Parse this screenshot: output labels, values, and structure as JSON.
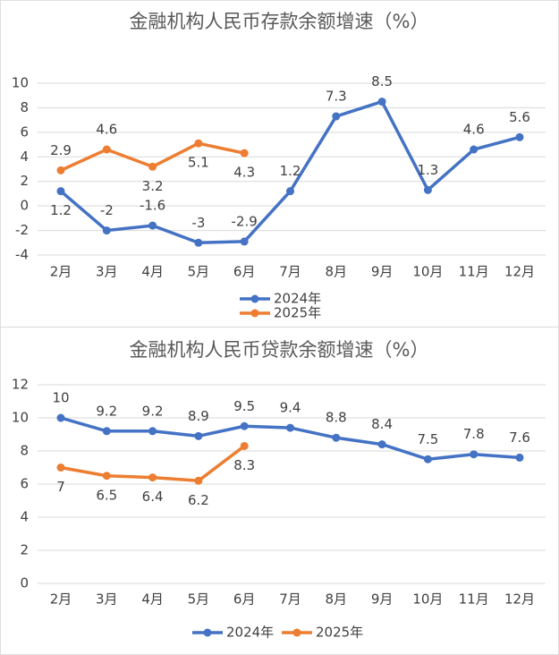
{
  "chart_data": [
    {
      "type": "line",
      "title": "金融机构人民币存款余额增速（%）",
      "categories": [
        "2月",
        "3月",
        "4月",
        "5月",
        "6月",
        "7月",
        "8月",
        "9月",
        "10月",
        "11月",
        "12月"
      ],
      "series": [
        {
          "name": "2024年",
          "color": "#4472c4",
          "values": [
            1.2,
            -2,
            -1.6,
            -3,
            -2.9,
            1.2,
            7.3,
            8.5,
            1.3,
            4.6,
            5.6
          ]
        },
        {
          "name": "2025年",
          "color": "#ed7d31",
          "values": [
            2.9,
            4.6,
            3.2,
            5.1,
            4.3,
            null,
            null,
            null,
            null,
            null,
            null
          ]
        }
      ],
      "ylim": [
        -4,
        10
      ],
      "yticks": [
        -4,
        -2,
        0,
        2,
        4,
        6,
        8,
        10
      ],
      "grid": true,
      "legend": "bottom"
    },
    {
      "type": "line",
      "title": "金融机构人民币贷款余额增速（%）",
      "categories": [
        "2月",
        "3月",
        "4月",
        "5月",
        "6月",
        "7月",
        "8月",
        "9月",
        "10月",
        "11月",
        "12月"
      ],
      "series": [
        {
          "name": "2024年",
          "color": "#4472c4",
          "values": [
            10,
            9.2,
            9.2,
            8.9,
            9.5,
            9.4,
            8.8,
            8.4,
            7.5,
            7.8,
            7.6
          ]
        },
        {
          "name": "2025年",
          "color": "#ed7d31",
          "values": [
            7,
            6.5,
            6.4,
            6.2,
            8.3,
            null,
            null,
            null,
            null,
            null,
            null
          ]
        }
      ],
      "ylim": [
        0,
        12
      ],
      "yticks": [
        0,
        2,
        4,
        6,
        8,
        10,
        12
      ],
      "grid": true,
      "legend": "bottom"
    }
  ]
}
